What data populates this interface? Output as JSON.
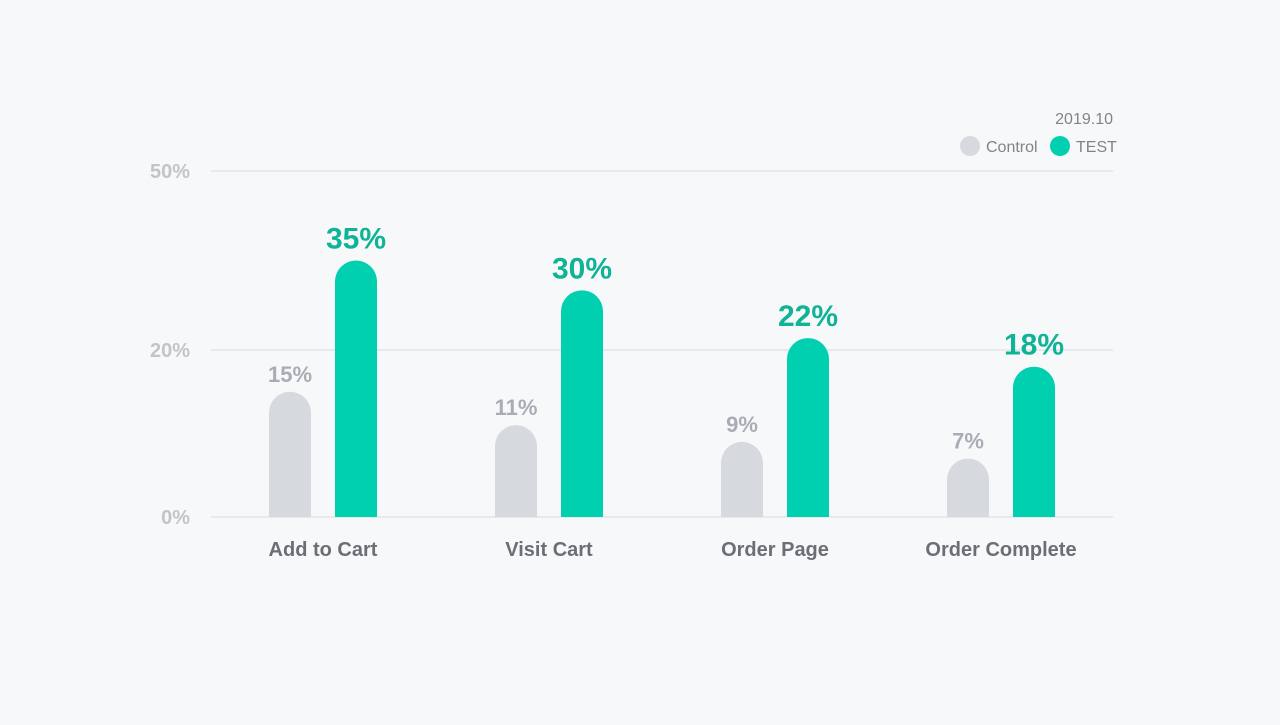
{
  "chart_data": {
    "type": "bar",
    "title": "",
    "subtitle": "2019.10",
    "xlabel": "",
    "ylabel": "",
    "categories": [
      "Add to Cart",
      "Visit Cart",
      "Order Page",
      "Order Complete"
    ],
    "series": [
      {
        "name": "Control",
        "color": "#d6d9dd",
        "values": [
          15,
          11,
          9,
          7
        ],
        "labels": [
          "15%",
          "11%",
          "9%",
          "7%"
        ]
      },
      {
        "name": "TEST",
        "color": "#00cfb0",
        "values": [
          35,
          30,
          22,
          18
        ],
        "labels": [
          "35%",
          "30%",
          "22%",
          "18%"
        ]
      }
    ],
    "yticks": [
      {
        "value": 0,
        "label": "0%"
      },
      {
        "value": 20,
        "label": "20%"
      },
      {
        "value": 50,
        "label": "50%"
      }
    ],
    "ylim": [
      0,
      50
    ],
    "legend_position": "top-right",
    "grid": true
  }
}
